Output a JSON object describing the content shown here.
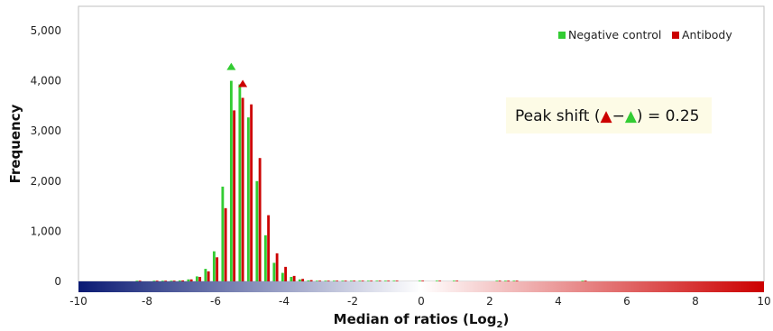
{
  "chart_data": {
    "type": "bar",
    "xlabel": "Median of ratios (Log",
    "xlabel_sub": "2",
    "xlabel_end": ")",
    "ylabel": "Frequency",
    "xlim": [
      -10,
      10
    ],
    "ylim": [
      0,
      5000
    ],
    "xticks": [
      "-10",
      "-8",
      "-6",
      "-4",
      "-2",
      "0",
      "2",
      "4",
      "6",
      "8",
      "10"
    ],
    "yticks": [
      "0",
      "1,000",
      "2,000",
      "3,000",
      "4,000",
      "5,000"
    ],
    "bin_width": 0.25,
    "x": [
      -8.25,
      -7.75,
      -7.5,
      -7.25,
      -7.0,
      -6.75,
      -6.5,
      -6.25,
      -6.0,
      -5.75,
      -5.5,
      -5.25,
      -5.0,
      -4.75,
      -4.5,
      -4.25,
      -4.0,
      -3.75,
      -3.5,
      -3.25,
      -3.0,
      -2.75,
      -2.5,
      -2.25,
      -2.0,
      -1.75,
      -1.5,
      -1.25,
      -1.0,
      -0.75,
      0.0,
      0.5,
      1.0,
      2.25,
      2.5,
      2.75,
      4.75
    ],
    "series": [
      {
        "name": "Negative control",
        "color": "#33cc33",
        "values": [
          5,
          10,
          10,
          15,
          20,
          40,
          100,
          250,
          600,
          1890,
          4000,
          3930,
          3270,
          2000,
          920,
          370,
          170,
          90,
          40,
          20,
          12,
          10,
          8,
          8,
          8,
          6,
          6,
          6,
          5,
          5,
          5,
          5,
          3,
          5,
          5,
          3,
          3
        ]
      },
      {
        "name": "Antibody",
        "color": "#cc0000",
        "values": [
          5,
          10,
          10,
          15,
          20,
          40,
          90,
          200,
          480,
          1460,
          3410,
          3660,
          3530,
          2460,
          1320,
          560,
          290,
          110,
          50,
          25,
          15,
          12,
          10,
          8,
          8,
          6,
          6,
          6,
          5,
          5,
          5,
          5,
          3,
          5,
          5,
          3,
          3
        ]
      }
    ],
    "peak_markers": [
      {
        "series": "Negative control",
        "x": -5.5,
        "color": "#33cc33"
      },
      {
        "series": "Antibody",
        "x": -5.25,
        "color": "#cc0000"
      }
    ],
    "legend": {
      "position": "top-right",
      "entries": [
        {
          "label": "Negative control",
          "color": "#33cc33"
        },
        {
          "label": "Antibody",
          "color": "#cc0000"
        }
      ]
    },
    "annotation": {
      "prefix": "Peak shift (",
      "dash": "−",
      "suffix": ") = 0.25",
      "background": "#fdfbe6"
    },
    "gradient_bar": {
      "colors": [
        "#0a1a73",
        "#ffffff",
        "#cc0000"
      ]
    },
    "grid": false
  }
}
